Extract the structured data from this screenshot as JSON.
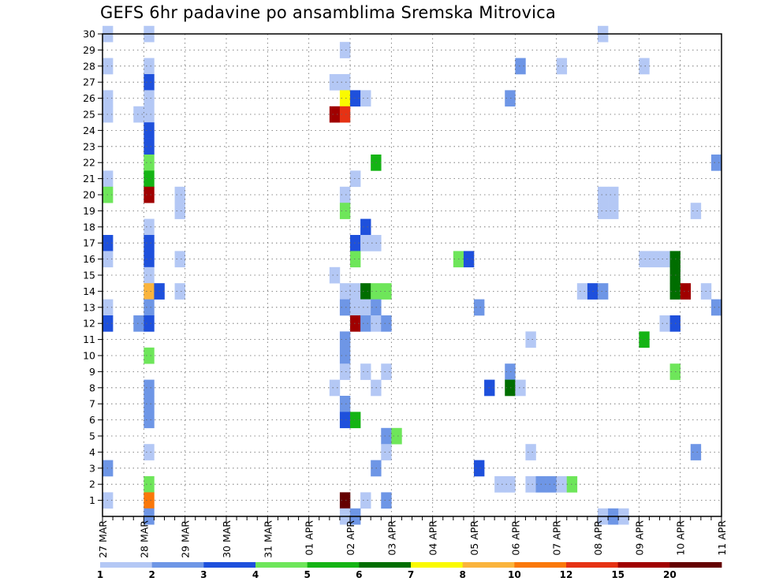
{
  "chart_data": {
    "type": "heatmap",
    "title": "GEFS 6hr padavine po ansamblima Sremska Mitrovica",
    "xlabel": "",
    "ylabel": "",
    "x_tick_labels": [
      "27 MAR",
      "28 MAR",
      "29 MAR",
      "30 MAR",
      "31 MAR",
      "01 APR",
      "02 APR",
      "03 APR",
      "04 APR",
      "05 APR",
      "06 APR",
      "07 APR",
      "08 APR",
      "09 APR",
      "10 APR",
      "11 APR"
    ],
    "x_step": "6h",
    "x_range_steps": [
      0,
      60
    ],
    "y_tick_labels": [
      "1",
      "2",
      "3",
      "4",
      "5",
      "6",
      "7",
      "8",
      "9",
      "10",
      "11",
      "12",
      "13",
      "14",
      "15",
      "16",
      "17",
      "18",
      "19",
      "20",
      "21",
      "22",
      "23",
      "24",
      "25",
      "26",
      "27",
      "28",
      "29",
      "30"
    ],
    "y_range": [
      0,
      30
    ],
    "grid": true,
    "colorbar": {
      "labels": [
        "1",
        "2",
        "3",
        "4",
        "5",
        "6",
        "7",
        "8",
        "10",
        "12",
        "15",
        "20"
      ],
      "colors": [
        "#b4c8f5",
        "#6e96e6",
        "#1e50dc",
        "#6ee65a",
        "#14b414",
        "#006e00",
        "#fafa00",
        "#fab43c",
        "#fa780a",
        "#e63214",
        "#a00000",
        "#640000"
      ]
    },
    "cells": [
      [
        0.5,
        30,
        0
      ],
      [
        4.5,
        30,
        0
      ],
      [
        48.5,
        30,
        0
      ],
      [
        23.5,
        29,
        0
      ],
      [
        0.5,
        28,
        0
      ],
      [
        4.5,
        28,
        0
      ],
      [
        40.5,
        28,
        1
      ],
      [
        44.5,
        28,
        0
      ],
      [
        52.5,
        28,
        0
      ],
      [
        4.5,
        27,
        2
      ],
      [
        22.5,
        27,
        0
      ],
      [
        23.5,
        27,
        0
      ],
      [
        0.5,
        26,
        0
      ],
      [
        4.5,
        26,
        0
      ],
      [
        23.5,
        26,
        6
      ],
      [
        24.5,
        26,
        2
      ],
      [
        25.5,
        26,
        0
      ],
      [
        39.5,
        26,
        1
      ],
      [
        0.5,
        25,
        0
      ],
      [
        3.5,
        25,
        0
      ],
      [
        4.5,
        25,
        0
      ],
      [
        22.5,
        25,
        10
      ],
      [
        23.5,
        25,
        9
      ],
      [
        4.5,
        24,
        2
      ],
      [
        4.5,
        23,
        2
      ],
      [
        4.5,
        22,
        3
      ],
      [
        26.5,
        22,
        4
      ],
      [
        59.5,
        22,
        1
      ],
      [
        0.5,
        21,
        0
      ],
      [
        4.5,
        21,
        4
      ],
      [
        24.5,
        21,
        0
      ],
      [
        0.5,
        20,
        3
      ],
      [
        4.5,
        20,
        10
      ],
      [
        7.5,
        20,
        0
      ],
      [
        23.5,
        20,
        0
      ],
      [
        48.5,
        20,
        0
      ],
      [
        49.5,
        20,
        0
      ],
      [
        7.5,
        19,
        0
      ],
      [
        23.5,
        19,
        3
      ],
      [
        48.5,
        19,
        0
      ],
      [
        49.5,
        19,
        0
      ],
      [
        57.5,
        19,
        0
      ],
      [
        4.5,
        18,
        0
      ],
      [
        25.5,
        18,
        2
      ],
      [
        0.5,
        17,
        2
      ],
      [
        4.5,
        17,
        2
      ],
      [
        24.5,
        17,
        2
      ],
      [
        25.5,
        17,
        0
      ],
      [
        26.5,
        17,
        0
      ],
      [
        0.5,
        16,
        0
      ],
      [
        4.5,
        16,
        2
      ],
      [
        7.5,
        16,
        0
      ],
      [
        24.5,
        16,
        3
      ],
      [
        34.5,
        16,
        3
      ],
      [
        35.5,
        16,
        2
      ],
      [
        52.5,
        16,
        0
      ],
      [
        53.5,
        16,
        0
      ],
      [
        54.5,
        16,
        0
      ],
      [
        55.5,
        16,
        5
      ],
      [
        4.5,
        15,
        0
      ],
      [
        22.5,
        15,
        0
      ],
      [
        55.5,
        15,
        5
      ],
      [
        4.5,
        14,
        7
      ],
      [
        5.5,
        14,
        2
      ],
      [
        7.5,
        14,
        0
      ],
      [
        23.5,
        14,
        0
      ],
      [
        24.5,
        14,
        0
      ],
      [
        25.5,
        14,
        5
      ],
      [
        26.5,
        14,
        3
      ],
      [
        27.5,
        14,
        3
      ],
      [
        46.5,
        14,
        0
      ],
      [
        47.5,
        14,
        2
      ],
      [
        48.5,
        14,
        1
      ],
      [
        55.5,
        14,
        5
      ],
      [
        56.5,
        14,
        10
      ],
      [
        58.5,
        14,
        0
      ],
      [
        0.5,
        13,
        0
      ],
      [
        4.5,
        13,
        1
      ],
      [
        23.5,
        13,
        1
      ],
      [
        24.5,
        13,
        0
      ],
      [
        25.5,
        13,
        0
      ],
      [
        26.5,
        13,
        1
      ],
      [
        36.5,
        13,
        1
      ],
      [
        59.5,
        13,
        1
      ],
      [
        0.5,
        12,
        2
      ],
      [
        3.5,
        12,
        1
      ],
      [
        4.5,
        12,
        2
      ],
      [
        24.5,
        12,
        10
      ],
      [
        25.5,
        12,
        1
      ],
      [
        26.5,
        12,
        0
      ],
      [
        27.5,
        12,
        1
      ],
      [
        54.5,
        12,
        0
      ],
      [
        55.5,
        12,
        2
      ],
      [
        23.5,
        11,
        1
      ],
      [
        41.5,
        11,
        0
      ],
      [
        52.5,
        11,
        4
      ],
      [
        4.5,
        10,
        3
      ],
      [
        23.5,
        10,
        1
      ],
      [
        23.5,
        9,
        0
      ],
      [
        25.5,
        9,
        0
      ],
      [
        27.5,
        9,
        0
      ],
      [
        39.5,
        9,
        1
      ],
      [
        55.5,
        9,
        3
      ],
      [
        4.5,
        8,
        1
      ],
      [
        22.5,
        8,
        0
      ],
      [
        26.5,
        8,
        0
      ],
      [
        37.5,
        8,
        2
      ],
      [
        39.5,
        8,
        5
      ],
      [
        40.5,
        8,
        0
      ],
      [
        4.5,
        7,
        1
      ],
      [
        23.5,
        7,
        1
      ],
      [
        4.5,
        6,
        1
      ],
      [
        23.5,
        6,
        2
      ],
      [
        24.5,
        6,
        4
      ],
      [
        27.5,
        5,
        1
      ],
      [
        28.5,
        5,
        3
      ],
      [
        4.5,
        4,
        0
      ],
      [
        27.5,
        4,
        0
      ],
      [
        41.5,
        4,
        0
      ],
      [
        57.5,
        4,
        1
      ],
      [
        0.5,
        3,
        1
      ],
      [
        26.5,
        3,
        1
      ],
      [
        36.5,
        3,
        2
      ],
      [
        4.5,
        2,
        3
      ],
      [
        38.5,
        2,
        0
      ],
      [
        39.5,
        2,
        0
      ],
      [
        41.5,
        2,
        0
      ],
      [
        42.5,
        2,
        1
      ],
      [
        43.5,
        2,
        1
      ],
      [
        44.5,
        2,
        0
      ],
      [
        45.5,
        2,
        3
      ],
      [
        0.5,
        1,
        0
      ],
      [
        4.5,
        1,
        8
      ],
      [
        23.5,
        1,
        11
      ],
      [
        25.5,
        1,
        0
      ],
      [
        27.5,
        1,
        1
      ],
      [
        4.5,
        0,
        1
      ],
      [
        23.5,
        0,
        0
      ],
      [
        24.5,
        0,
        1
      ],
      [
        48.5,
        0,
        0
      ],
      [
        49.5,
        0,
        1
      ],
      [
        50.5,
        0,
        0
      ]
    ]
  }
}
